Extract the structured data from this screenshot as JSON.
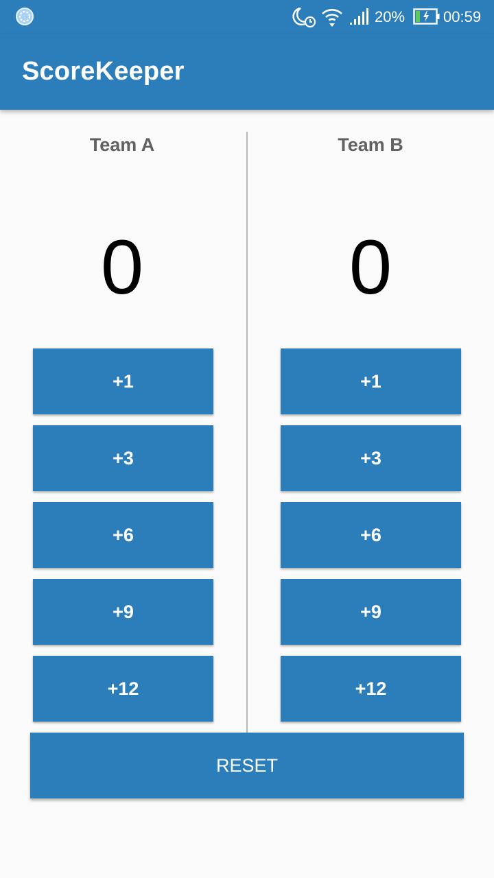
{
  "status_bar": {
    "battery_percent": "20%",
    "time": "00:59",
    "icons": [
      "sync-icon",
      "night-mode-alarm-icon",
      "wifi-icon",
      "signal-icon",
      "battery-charging-icon"
    ]
  },
  "app_bar": {
    "title": "ScoreKeeper"
  },
  "team_a": {
    "name": "Team A",
    "score": "0",
    "buttons": [
      "+1",
      "+3",
      "+6",
      "+9",
      "+12"
    ]
  },
  "team_b": {
    "name": "Team B",
    "score": "0",
    "buttons": [
      "+1",
      "+3",
      "+6",
      "+9",
      "+12"
    ]
  },
  "reset_label": "RESET",
  "colors": {
    "primary": "#2b7eba",
    "background": "#fafafa",
    "team_label": "#616161",
    "score_text": "#000000",
    "divider": "#b8b8b8"
  }
}
